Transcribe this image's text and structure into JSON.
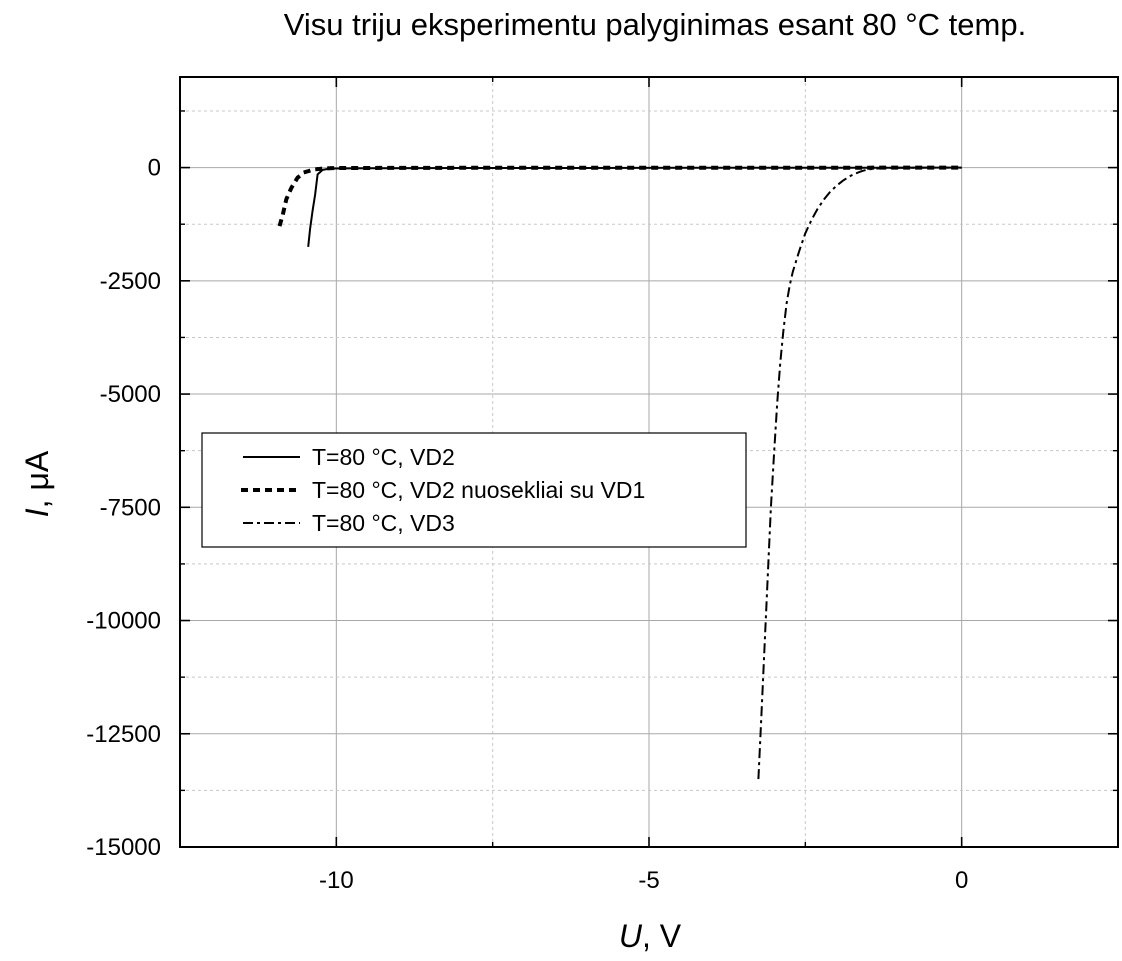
{
  "chart_data": {
    "type": "line",
    "title": "Visu triju eksperimentu palyginimas esant 80 °C temp.",
    "xlabel": {
      "symbol": "U",
      "unit": ", V"
    },
    "ylabel": {
      "symbol": "I",
      "unit": ", μA"
    },
    "xlim": [
      -12.5,
      2.5
    ],
    "ylim": [
      -15000,
      2000
    ],
    "x_ticks": [
      {
        "value": -10,
        "label": "-10"
      },
      {
        "value": -5,
        "label": "-5"
      },
      {
        "value": 0,
        "label": "0"
      }
    ],
    "y_ticks": [
      {
        "value": 0,
        "label": "0"
      },
      {
        "value": -2500,
        "label": "-2500"
      },
      {
        "value": -5000,
        "label": "-5000"
      },
      {
        "value": -7500,
        "label": "-7500"
      },
      {
        "value": -10000,
        "label": "-10000"
      },
      {
        "value": -12500,
        "label": "-12500"
      },
      {
        "value": -15000,
        "label": "-15000"
      }
    ],
    "x_minor_ticks": [
      -12.5,
      -7.5,
      -2.5,
      2.5
    ],
    "y_minor_ticks": [
      1250,
      -1250,
      -3750,
      -6250,
      -8750,
      -11250,
      -13750
    ],
    "grid": true,
    "legend_position": "middle-left",
    "series": [
      {
        "name": "T=80 °C, VD2",
        "style": "solid",
        "color": "#000000",
        "x": [
          -10.45,
          -10.42,
          -10.38,
          -10.34,
          -10.3,
          -10.22,
          -10.1,
          -9.5,
          -8,
          -6,
          -4,
          -2,
          -1,
          -0.5,
          0
        ],
        "y": [
          -1750,
          -1350,
          -950,
          -600,
          -150,
          -50,
          -20,
          -15,
          -10,
          -8,
          -5,
          -3,
          -2,
          -1,
          0
        ]
      },
      {
        "name": "T=80 °C, VD2 nuosekliai su VD1",
        "style": "dotted",
        "color": "#000000",
        "x": [
          -10.9,
          -10.85,
          -10.8,
          -10.72,
          -10.62,
          -10.5,
          -10.35,
          -10.2,
          -10,
          -9,
          -8,
          -7,
          -6,
          -5,
          -4,
          -3,
          -2,
          -1.5,
          -1,
          -0.5,
          0
        ],
        "y": [
          -1250,
          -1000,
          -700,
          -450,
          -220,
          -100,
          -40,
          -20,
          -10,
          -6,
          -5,
          -4,
          -4,
          -3,
          -3,
          -2,
          -2,
          -2,
          -1,
          -1,
          0
        ]
      },
      {
        "name": "T=80 °C, VD3",
        "style": "dashdot",
        "color": "#000000",
        "x": [
          -3.25,
          -3.2,
          -3.15,
          -3.1,
          -3.05,
          -3,
          -2.95,
          -2.9,
          -2.85,
          -2.8,
          -2.75,
          -2.7,
          -2.6,
          -2.5,
          -2.4,
          -2.3,
          -2.2,
          -2.1,
          -2,
          -1.9,
          -1.8,
          -1.7,
          -1.6,
          -1.5,
          -1.3,
          -1,
          -0.7,
          -0.4,
          -0.2,
          0
        ],
        "y": [
          -13500,
          -12000,
          -10500,
          -9000,
          -7500,
          -6300,
          -5200,
          -4300,
          -3600,
          -3000,
          -2600,
          -2300,
          -1850,
          -1450,
          -1150,
          -900,
          -700,
          -530,
          -400,
          -290,
          -200,
          -130,
          -80,
          -40,
          -15,
          -5,
          -2,
          -1,
          0,
          0
        ]
      }
    ]
  }
}
